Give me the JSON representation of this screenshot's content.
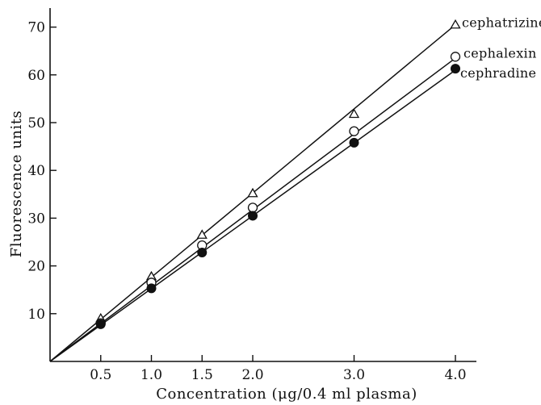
{
  "chart_data": {
    "type": "line",
    "title": "",
    "xlabel": "Concentration (μg/0.4 ml plasma)",
    "ylabel": "Fluorescence units",
    "xlim": [
      0,
      4.4
    ],
    "ylim": [
      0,
      74
    ],
    "x_ticks": [
      0.5,
      1.0,
      1.5,
      2.0,
      3.0,
      4.0
    ],
    "x_tick_labels": [
      "0.5",
      "1.0",
      "1.5",
      "2.0",
      "3.0",
      "4.0"
    ],
    "y_ticks": [
      10,
      20,
      30,
      40,
      50,
      60,
      70
    ],
    "y_tick_labels": [
      "10",
      "20",
      "30",
      "40",
      "50",
      "60",
      "70"
    ],
    "grid": false,
    "series": [
      {
        "name": "cephatrizine",
        "marker": "open-triangle",
        "line_from": [
          0,
          0
        ],
        "line_to": [
          4.0,
          70.5
        ],
        "points": [
          {
            "x": 0.5,
            "y": 9.0
          },
          {
            "x": 1.0,
            "y": 17.8
          },
          {
            "x": 1.5,
            "y": 26.5
          },
          {
            "x": 2.0,
            "y": 35.2
          },
          {
            "x": 3.0,
            "y": 51.8
          },
          {
            "x": 4.0,
            "y": 70.5
          }
        ]
      },
      {
        "name": "cephalexin",
        "marker": "open-circle",
        "line_from": [
          0,
          0
        ],
        "line_to": [
          4.0,
          63.5
        ],
        "points": [
          {
            "x": 0.5,
            "y": 8.0
          },
          {
            "x": 1.0,
            "y": 16.5
          },
          {
            "x": 1.5,
            "y": 24.3
          },
          {
            "x": 2.0,
            "y": 32.2
          },
          {
            "x": 3.0,
            "y": 48.2
          },
          {
            "x": 4.0,
            "y": 63.8
          }
        ]
      },
      {
        "name": "cephradine",
        "marker": "filled-circle",
        "line_from": [
          0,
          0
        ],
        "line_to": [
          4.0,
          61.0
        ],
        "points": [
          {
            "x": 0.5,
            "y": 7.8
          },
          {
            "x": 1.0,
            "y": 15.3
          },
          {
            "x": 1.5,
            "y": 22.8
          },
          {
            "x": 2.0,
            "y": 30.5
          },
          {
            "x": 3.0,
            "y": 45.8
          },
          {
            "x": 4.0,
            "y": 61.3
          }
        ]
      }
    ]
  }
}
